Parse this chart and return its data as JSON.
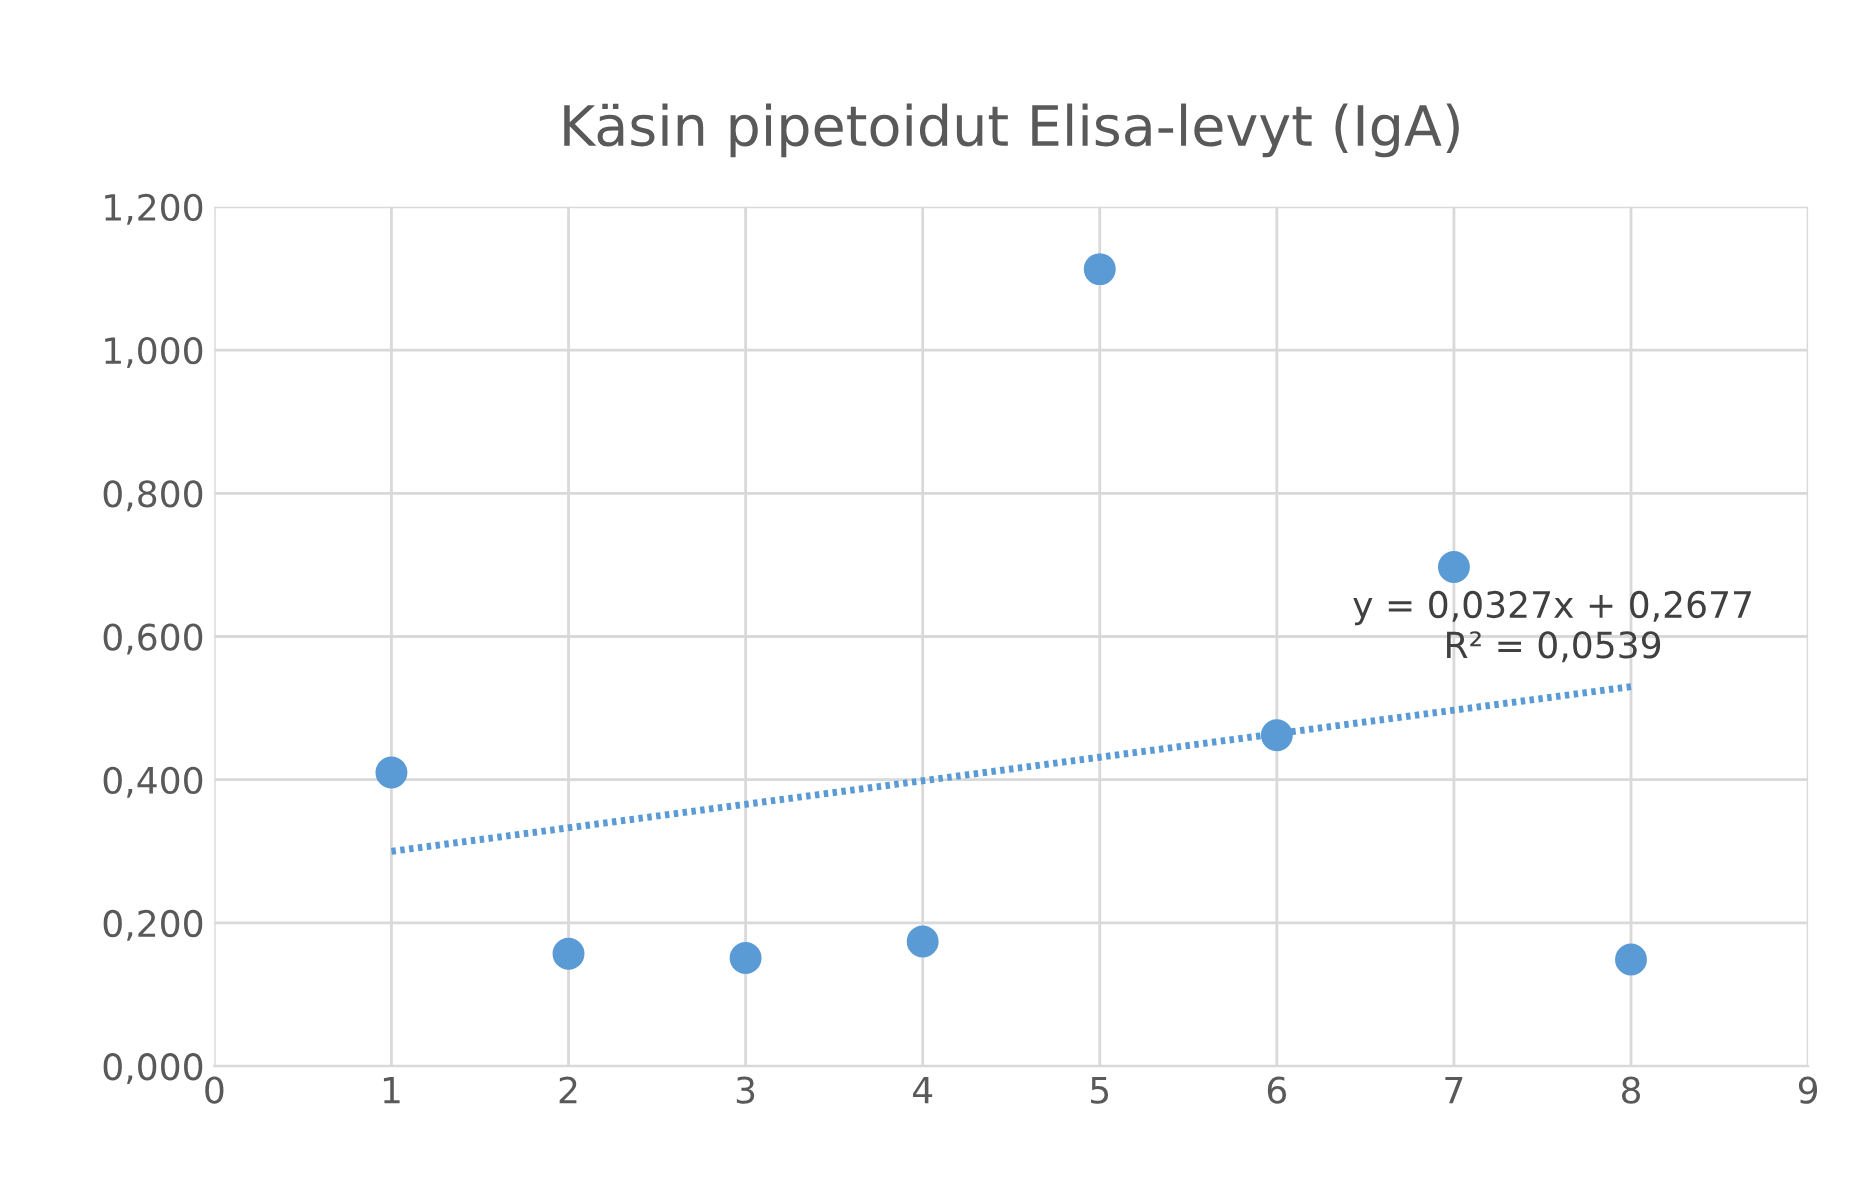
{
  "chart_data": {
    "type": "scatter",
    "title": "Käsin pipetoidut Elisa-levyt (IgA)",
    "series": [
      {
        "color": "#5b9bd5",
        "marker": "circle",
        "x": [
          1,
          2,
          3,
          4,
          5,
          6,
          7,
          8
        ],
        "values": [
          0.41,
          0.157,
          0.151,
          0.174,
          1.113,
          0.462,
          0.697,
          0.149
        ]
      },
      {
        "type": "line",
        "color": "#5b9bd5",
        "line_style": "dotted",
        "marker": "none",
        "x": [
          1,
          8
        ],
        "values": [
          0.3,
          0.53
        ]
      }
    ],
    "xlim": [
      0,
      9
    ],
    "xticks": [
      0,
      1,
      2,
      3,
      4,
      5,
      6,
      7,
      8,
      9
    ],
    "ylim": [
      0,
      1.2
    ],
    "yticks": [
      {
        "value": 0,
        "label": "0,000"
      },
      {
        "value": 0.2,
        "label": "0,200"
      },
      {
        "value": 0.4,
        "label": "0,400"
      },
      {
        "value": 0.6,
        "label": "0,600"
      },
      {
        "value": 0.8,
        "label": "0,800"
      },
      {
        "value": 1.0,
        "label": "1,000"
      },
      {
        "value": 1.2,
        "label": "1,200"
      }
    ],
    "grid": true,
    "legend": false,
    "annotations": [
      "y = 0,0327x + 0,2677\nR² = 0,0539"
    ]
  }
}
